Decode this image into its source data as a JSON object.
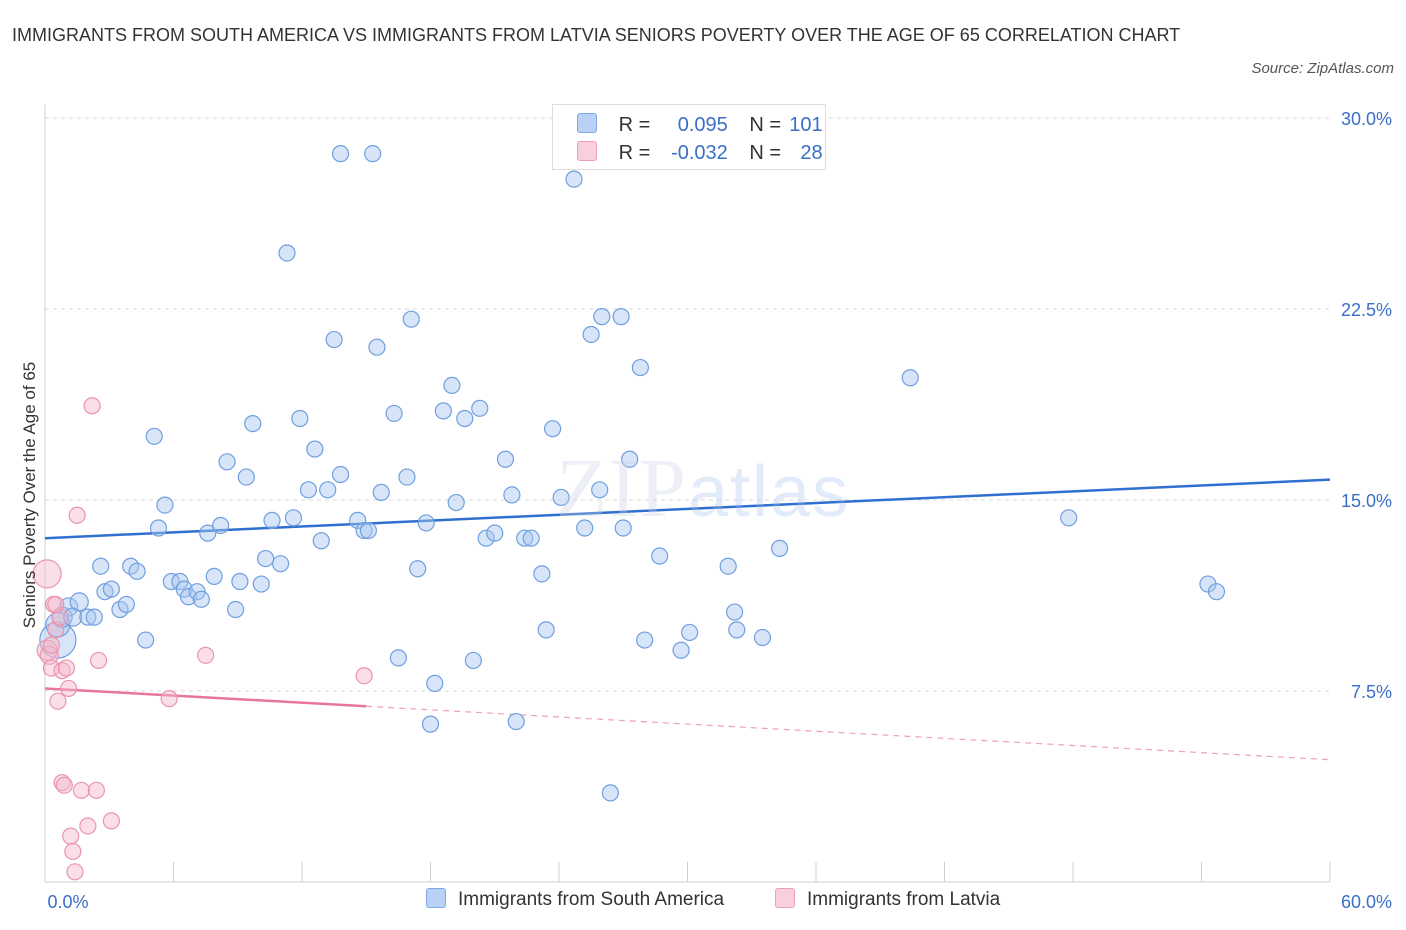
{
  "title": "IMMIGRANTS FROM SOUTH AMERICA VS IMMIGRANTS FROM LATVIA SENIORS POVERTY OVER THE AGE OF 65 CORRELATION CHART",
  "source": "Source: ZipAtlas.com",
  "watermark": {
    "zip": "ZIP",
    "atlas": "atlas"
  },
  "legend": {
    "rows": [
      {
        "r_label": "R =",
        "r_value": "0.095",
        "n_label": "N =",
        "n_value": "101",
        "color": "#a9c6f0"
      },
      {
        "r_label": "R =",
        "r_value": "-0.032",
        "n_label": "N =",
        "n_value": "28",
        "color": "#f5b9cb"
      }
    ]
  },
  "bottom_legend": [
    {
      "label": "Immigrants from South America",
      "color": "#a9c6f0"
    },
    {
      "label": "Immigrants from Latvia",
      "color": "#f5b9cb"
    }
  ],
  "chart_data": {
    "type": "scatter",
    "title": "IMMIGRANTS FROM SOUTH AMERICA VS IMMIGRANTS FROM LATVIA SENIORS POVERTY OVER THE AGE OF 65 CORRELATION CHART",
    "xlabel": "",
    "ylabel": "Seniors Poverty Over the Age of 65",
    "xlim": [
      0,
      60
    ],
    "ylim": [
      0,
      30
    ],
    "x_tick_labels": [
      "0.0%",
      "60.0%"
    ],
    "y_ticks": [
      7.5,
      15.0,
      22.5,
      30.0
    ],
    "y_tick_labels": [
      "7.5%",
      "15.0%",
      "22.5%",
      "30.0%"
    ],
    "grid": true,
    "legend_position": "top-center",
    "series": [
      {
        "name": "Immigrants from South America",
        "color": "#a9c6f0",
        "stroke": "#6f9fe0",
        "trend": {
          "x": [
            0,
            60
          ],
          "y": [
            13.5,
            15.8
          ],
          "color": "#2f6fd0"
        },
        "points": [
          [
            0.6,
            9.5,
            18
          ],
          [
            0.6,
            10.1,
            12
          ],
          [
            0.8,
            10.4,
            10
          ],
          [
            1.1,
            10.8,
            9
          ],
          [
            1.3,
            10.4,
            9
          ],
          [
            1.6,
            11.0,
            9
          ],
          [
            2.0,
            10.4,
            8
          ],
          [
            2.3,
            10.4,
            8
          ],
          [
            2.6,
            12.4,
            8
          ],
          [
            2.8,
            11.4,
            8
          ],
          [
            3.1,
            11.5,
            8
          ],
          [
            3.5,
            10.7,
            8
          ],
          [
            3.8,
            10.9,
            8
          ],
          [
            4.0,
            12.4,
            8
          ],
          [
            4.3,
            12.2,
            8
          ],
          [
            4.7,
            9.5,
            8
          ],
          [
            5.1,
            17.5,
            8
          ],
          [
            5.3,
            13.9,
            8
          ],
          [
            5.6,
            14.8,
            8
          ],
          [
            5.9,
            11.8,
            8
          ],
          [
            6.3,
            11.8,
            8
          ],
          [
            6.5,
            11.5,
            8
          ],
          [
            6.7,
            11.2,
            8
          ],
          [
            7.1,
            11.4,
            8
          ],
          [
            7.3,
            11.1,
            8
          ],
          [
            7.6,
            13.7,
            8
          ],
          [
            7.9,
            12.0,
            8
          ],
          [
            8.2,
            14.0,
            8
          ],
          [
            8.5,
            16.5,
            8
          ],
          [
            8.9,
            10.7,
            8
          ],
          [
            9.1,
            11.8,
            8
          ],
          [
            9.4,
            15.9,
            8
          ],
          [
            9.7,
            18.0,
            8
          ],
          [
            10.1,
            11.7,
            8
          ],
          [
            10.3,
            12.7,
            8
          ],
          [
            10.6,
            14.2,
            8
          ],
          [
            11.0,
            12.5,
            8
          ],
          [
            11.3,
            24.7,
            8
          ],
          [
            11.6,
            14.3,
            8
          ],
          [
            11.9,
            18.2,
            8
          ],
          [
            12.3,
            15.4,
            8
          ],
          [
            12.6,
            17.0,
            8
          ],
          [
            12.9,
            13.4,
            8
          ],
          [
            13.2,
            15.4,
            8
          ],
          [
            13.5,
            21.3,
            8
          ],
          [
            13.8,
            16.0,
            8
          ],
          [
            13.8,
            28.6,
            8
          ],
          [
            14.6,
            14.2,
            8
          ],
          [
            14.9,
            13.8,
            8
          ],
          [
            15.1,
            13.8,
            8
          ],
          [
            15.3,
            28.6,
            8
          ],
          [
            15.5,
            21.0,
            8
          ],
          [
            15.7,
            15.3,
            8
          ],
          [
            16.3,
            18.4,
            8
          ],
          [
            16.5,
            8.8,
            8
          ],
          [
            16.9,
            15.9,
            8
          ],
          [
            17.1,
            22.1,
            8
          ],
          [
            17.4,
            12.3,
            8
          ],
          [
            17.8,
            14.1,
            8
          ],
          [
            18.0,
            6.2,
            8
          ],
          [
            18.2,
            7.8,
            8
          ],
          [
            18.6,
            18.5,
            8
          ],
          [
            19.0,
            19.5,
            8
          ],
          [
            19.2,
            14.9,
            8
          ],
          [
            19.6,
            18.2,
            8
          ],
          [
            20.0,
            8.7,
            8
          ],
          [
            20.3,
            18.6,
            8
          ],
          [
            20.6,
            13.5,
            8
          ],
          [
            21.0,
            13.7,
            8
          ],
          [
            21.5,
            16.6,
            8
          ],
          [
            21.8,
            15.2,
            8
          ],
          [
            22.0,
            6.3,
            8
          ],
          [
            22.4,
            13.5,
            8
          ],
          [
            22.7,
            13.5,
            8
          ],
          [
            23.2,
            12.1,
            8
          ],
          [
            23.4,
            9.9,
            8
          ],
          [
            23.7,
            17.8,
            8
          ],
          [
            24.1,
            15.1,
            8
          ],
          [
            24.7,
            27.6,
            8
          ],
          [
            25.2,
            13.9,
            8
          ],
          [
            25.5,
            21.5,
            8
          ],
          [
            25.9,
            15.4,
            8
          ],
          [
            26.0,
            22.2,
            8
          ],
          [
            26.4,
            3.5,
            8
          ],
          [
            26.9,
            22.2,
            8
          ],
          [
            27.0,
            13.9,
            8
          ],
          [
            27.3,
            16.6,
            8
          ],
          [
            27.8,
            20.2,
            8
          ],
          [
            28.0,
            9.5,
            8
          ],
          [
            28.7,
            12.8,
            8
          ],
          [
            29.7,
            9.1,
            8
          ],
          [
            30.1,
            9.8,
            8
          ],
          [
            31.9,
            12.4,
            8
          ],
          [
            32.2,
            10.6,
            8
          ],
          [
            32.3,
            9.9,
            8
          ],
          [
            33.5,
            9.6,
            8
          ],
          [
            34.3,
            13.1,
            8
          ],
          [
            40.4,
            19.8,
            8
          ],
          [
            47.8,
            14.3,
            8
          ],
          [
            54.3,
            11.7,
            8
          ],
          [
            54.7,
            11.4,
            8
          ]
        ]
      },
      {
        "name": "Immigrants from Latvia",
        "color": "#f5b9cb",
        "stroke": "#ea94ae",
        "trend": {
          "x": [
            0,
            15
          ],
          "y": [
            7.6,
            6.9
          ],
          "dashed_to": [
            60,
            4.8
          ],
          "color": "#e8769b"
        },
        "points": [
          [
            0.1,
            12.1,
            14
          ],
          [
            0.1,
            9.1,
            10
          ],
          [
            0.2,
            8.9,
            9
          ],
          [
            0.3,
            8.4,
            8
          ],
          [
            0.4,
            10.9,
            8
          ],
          [
            0.5,
            9.9,
            8
          ],
          [
            0.6,
            7.1,
            8
          ],
          [
            0.7,
            10.4,
            8
          ],
          [
            0.8,
            8.3,
            8
          ],
          [
            0.8,
            3.9,
            8
          ],
          [
            0.9,
            3.8,
            8
          ],
          [
            1.0,
            8.4,
            8
          ],
          [
            1.1,
            7.6,
            8
          ],
          [
            1.2,
            1.8,
            8
          ],
          [
            1.3,
            1.2,
            8
          ],
          [
            1.4,
            0.4,
            8
          ],
          [
            1.5,
            14.4,
            8
          ],
          [
            1.7,
            3.6,
            8
          ],
          [
            2.0,
            2.2,
            8
          ],
          [
            2.2,
            18.7,
            8
          ],
          [
            2.4,
            3.6,
            8
          ],
          [
            2.5,
            8.7,
            8
          ],
          [
            3.1,
            2.4,
            8
          ],
          [
            5.8,
            7.2,
            8
          ],
          [
            7.5,
            8.9,
            8
          ],
          [
            14.9,
            8.1,
            8
          ],
          [
            0.5,
            10.9,
            8
          ],
          [
            0.3,
            9.3,
            8
          ]
        ]
      }
    ]
  }
}
